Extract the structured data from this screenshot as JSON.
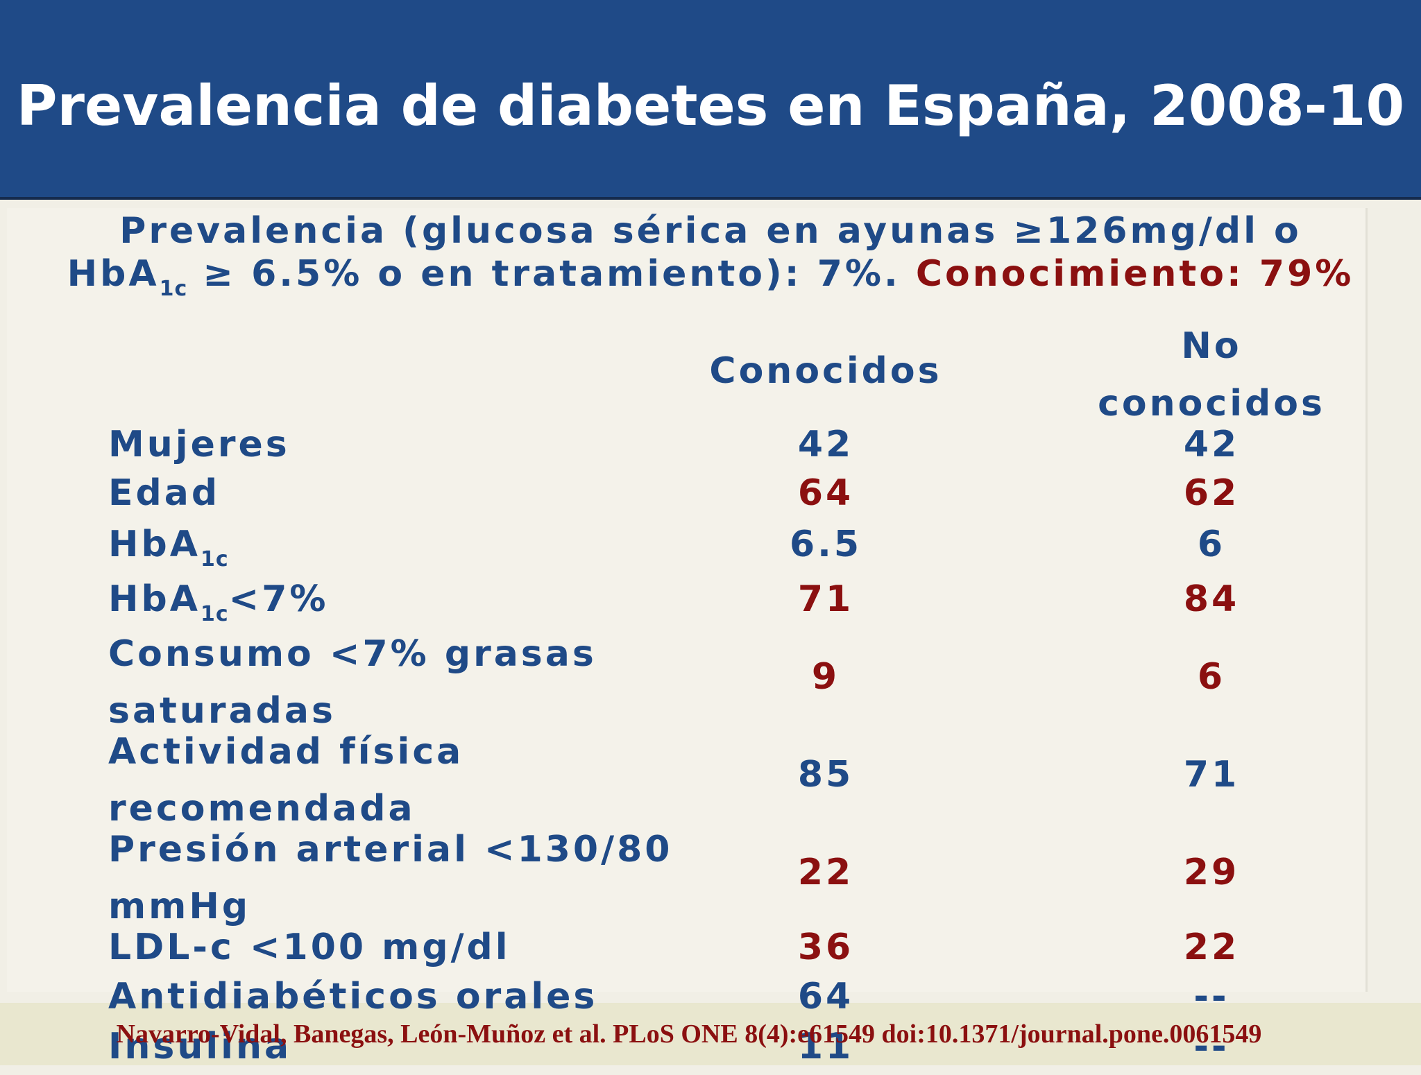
{
  "slide": {
    "title": "Prevalencia de diabetes en España, 2008-10",
    "subtitle_line1": "Prevalencia (glucosa sérica en ayunas ≥126mg/dl o",
    "subtitle_line2_a": "HbA",
    "subtitle_line2_sub": "1c",
    "subtitle_line2_b": " ≥ 6.5% o en tratamiento): 7%.",
    "subtitle_line2_red": "Conocimiento: 79%"
  },
  "table": {
    "col1_header": "Conocidos",
    "col2_header_line1": "No",
    "col2_header_line2": "conocidos",
    "rows": [
      {
        "label": "Mujeres",
        "known": "42",
        "unknown": "42",
        "color": "blue"
      },
      {
        "label": "Edad",
        "known": "64",
        "unknown": "62",
        "color": "red"
      },
      {
        "label": "HbA",
        "label_sub": "1c",
        "label_suffix": "",
        "known": "6.5",
        "unknown": "6",
        "color": "blue"
      },
      {
        "label": "HbA",
        "label_sub": "1c",
        "label_suffix": "<7%",
        "known": "71",
        "unknown": "84",
        "color": "red"
      },
      {
        "label_line1": "Consumo <7% grasas",
        "label_line2": "saturadas",
        "known": "9",
        "unknown": "6",
        "color": "red"
      },
      {
        "label_line1": "Actividad física",
        "label_line2": "recomendada",
        "known": "85",
        "unknown": "71",
        "color": "blue"
      },
      {
        "label_line1": "Presión arterial <130/80",
        "label_line2": "mmHg",
        "known": "22",
        "unknown": "29",
        "color": "red"
      },
      {
        "label": "LDL-c <100 mg/dl",
        "known": "36",
        "unknown": "22",
        "color": "red"
      },
      {
        "label": "Antidiabéticos orales",
        "known": "64",
        "unknown": "--",
        "color": "blue"
      },
      {
        "label": "Insulina",
        "known": "11",
        "unknown": "--",
        "color": "blue"
      }
    ]
  },
  "reference": "Navarro-Vidal, Banegas, León-Muñoz et al. PLoS ONE 8(4):e61549 doi:10.1371/journal.pone.0061549",
  "colors": {
    "header_bg": "#1f4a87",
    "text_blue": "#1f4a87",
    "text_red": "#8b1010",
    "background": "#f1efe6"
  }
}
